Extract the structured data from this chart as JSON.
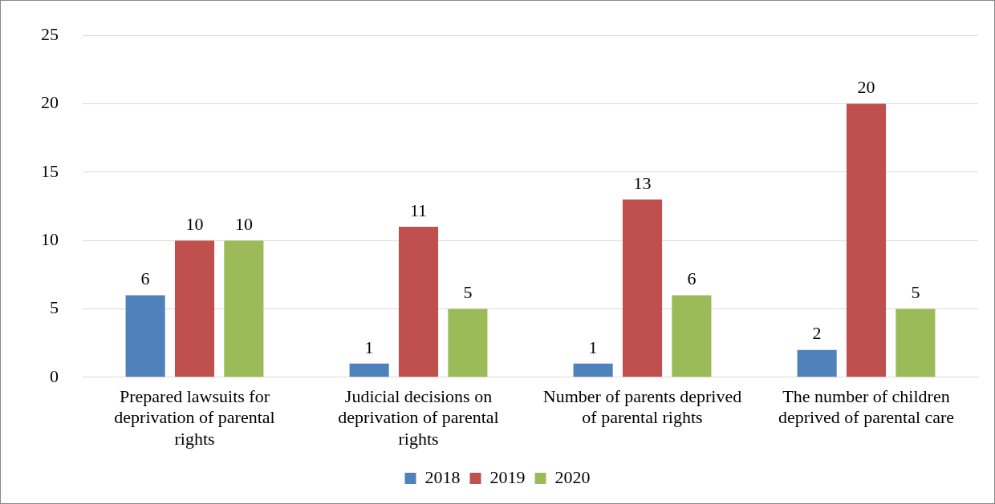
{
  "chart_data": {
    "type": "bar",
    "categories": [
      "Prepared lawsuits for deprivation of parental rights",
      "Judicial decisions on deprivation of parental rights",
      "Number of parents deprived of parental rights",
      "The number of children deprived of parental care"
    ],
    "series": [
      {
        "name": "2018",
        "color": "#4f81bd",
        "values": [
          6,
          1,
          1,
          2
        ]
      },
      {
        "name": "2019",
        "color": "#c0504d",
        "values": [
          10,
          11,
          13,
          20
        ]
      },
      {
        "name": "2020",
        "color": "#9bbb59",
        "values": [
          10,
          5,
          6,
          5
        ]
      }
    ],
    "ylim": [
      0,
      25
    ],
    "yticks": [
      0,
      5,
      10,
      15,
      20,
      25
    ],
    "grid": "y",
    "legend": "bottom",
    "data_labels": true
  }
}
